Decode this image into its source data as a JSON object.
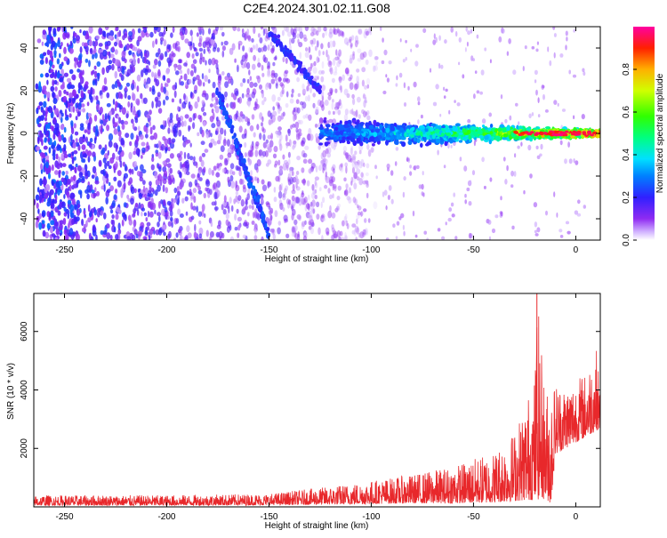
{
  "figure": {
    "title": "C2E4.2024.301.02.11.G08"
  },
  "colors": {
    "axis": "#000000",
    "snr_line": "#e8282b",
    "spectrogram_low": "#8f2bf2",
    "spectrogram_mid": "#00ff66",
    "spectrogram_high": "#ff0000"
  },
  "chart_data": [
    {
      "type": "heatmap",
      "title": "C2E4.2024.301.02.11.G08",
      "xlabel": "Height of straight line (km)",
      "ylabel": "Frequency (Hz)",
      "xlim": [
        -265,
        12
      ],
      "ylim": [
        -50,
        50
      ],
      "xticks": [
        -250,
        -200,
        -150,
        -100,
        -50,
        0
      ],
      "yticks": [
        -40,
        -20,
        0,
        20,
        40
      ],
      "colorbar": {
        "label": "Normalized spectral amplitude",
        "range": [
          0,
          1
        ],
        "ticks": [
          "0.0",
          "0.2",
          "0.4",
          "0.6",
          "0.8"
        ],
        "colormap": "rainbow (violet to red)"
      },
      "features": [
        {
          "name": "signal band",
          "x_range": [
            -125,
            12
          ],
          "frequency_center": 0,
          "half_width_start": 8,
          "half_width_end": 2,
          "amplitude_start": 0.3,
          "amplitude_end": 1.0
        },
        {
          "name": "descending streak",
          "x_range": [
            -175,
            -150
          ],
          "frequency_range": [
            20,
            -48
          ]
        },
        {
          "name": "upper diagonal streak",
          "x_range": [
            -150,
            -125
          ],
          "frequency_range": [
            48,
            20
          ]
        },
        {
          "name": "background noise",
          "x_range": [
            -265,
            -105
          ],
          "amplitude": 0.2
        }
      ],
      "grid": false
    },
    {
      "type": "line",
      "xlabel": "Height of straight line (km)",
      "ylabel": "SNR (10 * v/v)",
      "xlim": [
        -265,
        12
      ],
      "ylim": [
        0,
        7300
      ],
      "xticks": [
        -250,
        -200,
        -150,
        -100,
        -50,
        0
      ],
      "yticks": [
        2000,
        4000,
        6000
      ],
      "series": [
        {
          "envelope_x": [
            -265,
            -200,
            -150,
            -120,
            -100,
            -80,
            -60,
            -40,
            -30,
            -20,
            -19,
            -15,
            -12,
            -10,
            -5,
            0,
            5,
            10,
            12
          ],
          "envelope_min": [
            50,
            50,
            60,
            80,
            100,
            120,
            120,
            150,
            200,
            250,
            250,
            300,
            100,
            1800,
            2000,
            2200,
            2400,
            2600,
            2700
          ],
          "envelope_max": [
            400,
            400,
            450,
            700,
            900,
            1100,
            1400,
            1900,
            2600,
            4500,
            7300,
            4000,
            4200,
            4300,
            4200,
            4400,
            4600,
            5500,
            4000
          ]
        }
      ],
      "grid": false
    }
  ]
}
